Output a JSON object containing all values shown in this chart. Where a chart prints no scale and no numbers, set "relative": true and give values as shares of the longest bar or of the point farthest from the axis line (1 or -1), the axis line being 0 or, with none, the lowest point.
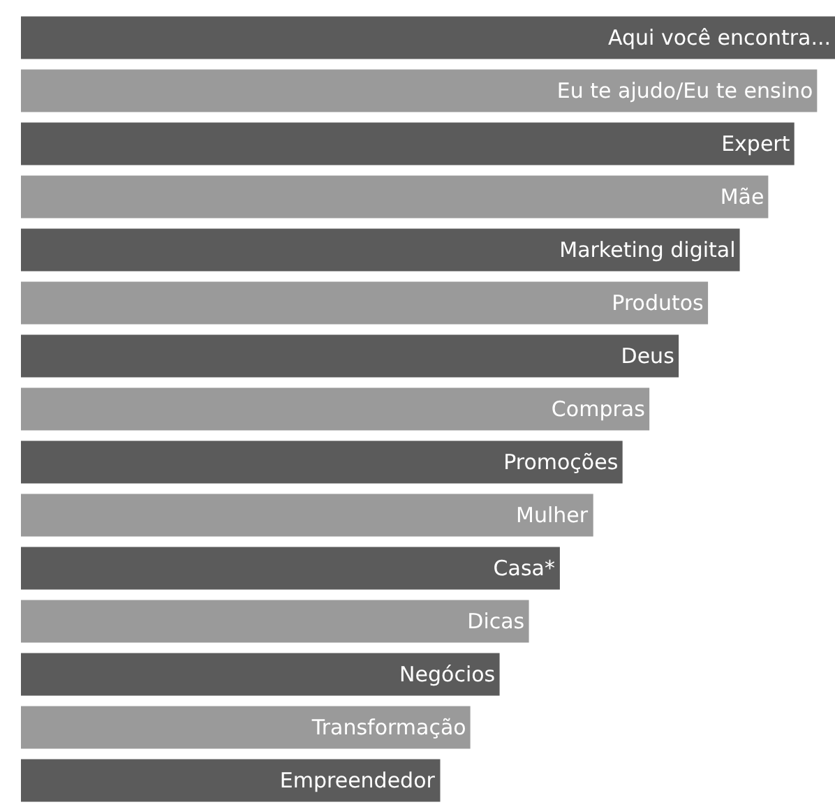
{
  "chart_data": {
    "type": "bar",
    "orientation": "horizontal",
    "relative": true,
    "tick_labels": false,
    "categories": [
      "Aqui você encontra...",
      "Eu te ajudo/Eu te ensino",
      "Expert",
      "Mãe",
      "Marketing digital",
      "Produtos",
      "Deus",
      "Compras",
      "Promoções",
      "Mulher",
      "Casa*",
      "Dicas",
      "Negócios",
      "Transformação",
      "Empreendedor"
    ],
    "values": [
      1,
      0.978,
      0.95,
      0.918,
      0.883,
      0.844,
      0.808,
      0.772,
      0.739,
      0.703,
      0.662,
      0.624,
      0.588,
      0.552,
      0.515
    ],
    "colors": [
      "#5b5b5b",
      "#9a9a9a",
      "#5b5b5b",
      "#9a9a9a",
      "#5b5b5b",
      "#9a9a9a",
      "#5b5b5b",
      "#9a9a9a",
      "#5b5b5b",
      "#9a9a9a",
      "#5b5b5b",
      "#9a9a9a",
      "#5b5b5b",
      "#9a9a9a",
      "#5b5b5b"
    ]
  }
}
